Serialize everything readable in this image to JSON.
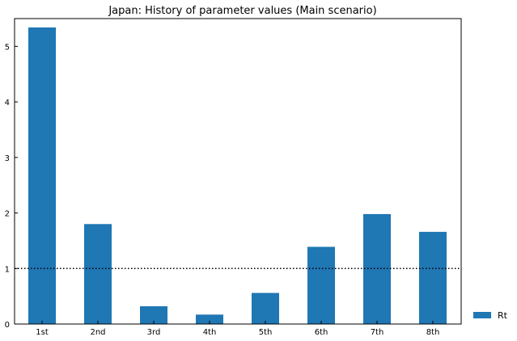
{
  "chart_data": {
    "type": "bar",
    "title": "Japan: History of parameter values (Main scenario)",
    "xlabel": "",
    "ylabel": "",
    "categories": [
      "1st",
      "2nd",
      "3rd",
      "4th",
      "5th",
      "6th",
      "7th",
      "8th"
    ],
    "series": [
      {
        "name": "Rt",
        "values": [
          5.34,
          1.8,
          0.32,
          0.17,
          0.56,
          1.39,
          1.98,
          1.66
        ]
      }
    ],
    "ylim": [
      0,
      5.5
    ],
    "yticks": [
      0,
      1,
      2,
      3,
      4,
      5
    ],
    "reference_line": {
      "y": 1,
      "style": "dotted",
      "color": "#000000"
    },
    "grid": false,
    "legend_position": "lower-right outside",
    "colors": {
      "bar": "#1f77b4",
      "axes": "#000000",
      "background": "#ffffff"
    }
  }
}
